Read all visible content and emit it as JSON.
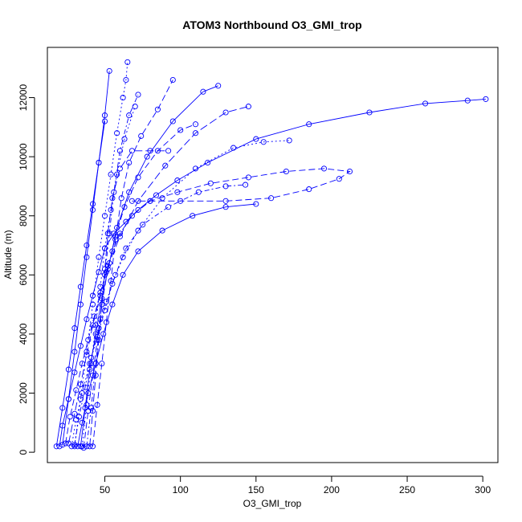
{
  "chart_data": {
    "type": "scatter",
    "title": "ATOM3 Northbound O3_GMI_trop",
    "xlabel": "O3_GMI_trop",
    "ylabel": "Altitude (m)",
    "xlim": [
      12,
      310
    ],
    "ylim": [
      -350,
      13700
    ],
    "x_ticks": [
      50,
      100,
      150,
      200,
      250,
      300
    ],
    "y_ticks": [
      0,
      2000,
      4000,
      6000,
      8000,
      10000,
      12000
    ],
    "grid": false,
    "legend": "none",
    "marker": "open-circle",
    "color": "#0000ff",
    "series": [
      {
        "x": [
          20,
          22,
          26,
          30,
          34,
          38,
          42,
          46,
          50,
          56,
          64,
          72,
          84,
          98,
          118,
          150,
          185,
          225,
          262,
          290,
          302
        ],
        "y": [
          200,
          900,
          1800,
          2700,
          3600,
          4500,
          5300,
          6100,
          6900,
          7400,
          7800,
          8200,
          8700,
          9200,
          9800,
          10600,
          11100,
          11500,
          11800,
          11900,
          11950
        ]
      },
      {
        "x": [
          24,
          27,
          31,
          35,
          39,
          43,
          47,
          51,
          55,
          60,
          68,
          80,
          98,
          120,
          145,
          170,
          195,
          212,
          205,
          185,
          160,
          130,
          100,
          80,
          68
        ],
        "y": [
          300,
          1200,
          2100,
          3000,
          3800,
          4600,
          5400,
          6100,
          6800,
          7400,
          8000,
          8500,
          8800,
          9100,
          9300,
          9500,
          9600,
          9500,
          9250,
          8900,
          8600,
          8500,
          8500,
          8500,
          8500
        ]
      },
      {
        "x": [
          28,
          31,
          35,
          40,
          45,
          50,
          55,
          62,
          72,
          88,
          110,
          135,
          155,
          172
        ],
        "y": [
          200,
          1100,
          2000,
          3000,
          3900,
          4800,
          5700,
          6600,
          7500,
          8600,
          9600,
          10300,
          10500,
          10550
        ]
      },
      {
        "x": [
          30,
          33,
          37,
          41,
          46,
          51,
          57,
          64,
          75,
          92,
          112,
          130,
          143
        ],
        "y": [
          250,
          1200,
          2200,
          3200,
          4200,
          5100,
          6000,
          6900,
          7700,
          8300,
          8800,
          9000,
          9050
        ]
      },
      {
        "x": [
          32,
          35,
          39,
          44,
          49,
          55,
          62,
          72,
          88,
          108,
          130,
          150
        ],
        "y": [
          200,
          1000,
          2000,
          3000,
          4000,
          5000,
          6000,
          6800,
          7500,
          8000,
          8300,
          8400
        ]
      },
      {
        "x": [
          26,
          30,
          34,
          38,
          42,
          47,
          52,
          60,
          72,
          90,
          110,
          130,
          145
        ],
        "y": [
          300,
          1300,
          2300,
          3300,
          4300,
          5300,
          6300,
          7300,
          8500,
          9700,
          10800,
          11500,
          11700
        ]
      },
      {
        "x": [
          34,
          37,
          40,
          44,
          48,
          53,
          58,
          66,
          78,
          95,
          115,
          125
        ],
        "y": [
          200,
          1500,
          2800,
          4000,
          5200,
          6400,
          7600,
          8800,
          10000,
          11200,
          12200,
          12400
        ]
      },
      {
        "x": [
          36,
          39,
          42,
          45,
          48,
          52,
          57,
          63,
          72,
          85,
          100,
          110
        ],
        "y": [
          150,
          1400,
          2600,
          3800,
          5000,
          6200,
          7300,
          8300,
          9300,
          10200,
          10900,
          11100
        ]
      },
      {
        "x": [
          30,
          34,
          38,
          42,
          46,
          50,
          54,
          58,
          62,
          64,
          65
        ],
        "y": [
          200,
          1800,
          3400,
          5000,
          6600,
          8000,
          9400,
          10800,
          12000,
          12600,
          13200
        ]
      },
      {
        "x": [
          38,
          41,
          44,
          47,
          50,
          53,
          56,
          60,
          66,
          72
        ],
        "y": [
          200,
          1500,
          3000,
          4500,
          6000,
          7400,
          8800,
          10200,
          11400,
          12100
        ]
      },
      {
        "x": [
          22,
          26,
          30,
          34,
          38,
          42,
          46,
          50,
          53
        ],
        "y": [
          250,
          1800,
          3400,
          5000,
          6600,
          8200,
          9800,
          11400,
          12900
        ]
      },
      {
        "x": [
          40,
          42,
          44,
          46,
          48,
          50,
          52,
          55,
          60,
          68,
          80,
          92
        ],
        "y": [
          200,
          1400,
          2600,
          3800,
          5000,
          6200,
          7400,
          8600,
          9600,
          10200,
          10200,
          10200
        ]
      },
      {
        "x": [
          18,
          22,
          26,
          30,
          34,
          38,
          42,
          46,
          50
        ],
        "y": [
          200,
          1500,
          2800,
          4200,
          5600,
          7000,
          8400,
          9800,
          11200
        ]
      },
      {
        "x": [
          42,
          45,
          48,
          51,
          54,
          57,
          61,
          66,
          74,
          85,
          95
        ],
        "y": [
          200,
          1600,
          3000,
          4400,
          5800,
          7200,
          8600,
          9800,
          10700,
          11600,
          12600
        ]
      },
      {
        "x": [
          35,
          38,
          41,
          44,
          47,
          50,
          54,
          58,
          63,
          70
        ],
        "y": [
          200,
          1600,
          3000,
          4300,
          5600,
          6900,
          8200,
          9400,
          10600,
          11700
        ]
      }
    ]
  }
}
